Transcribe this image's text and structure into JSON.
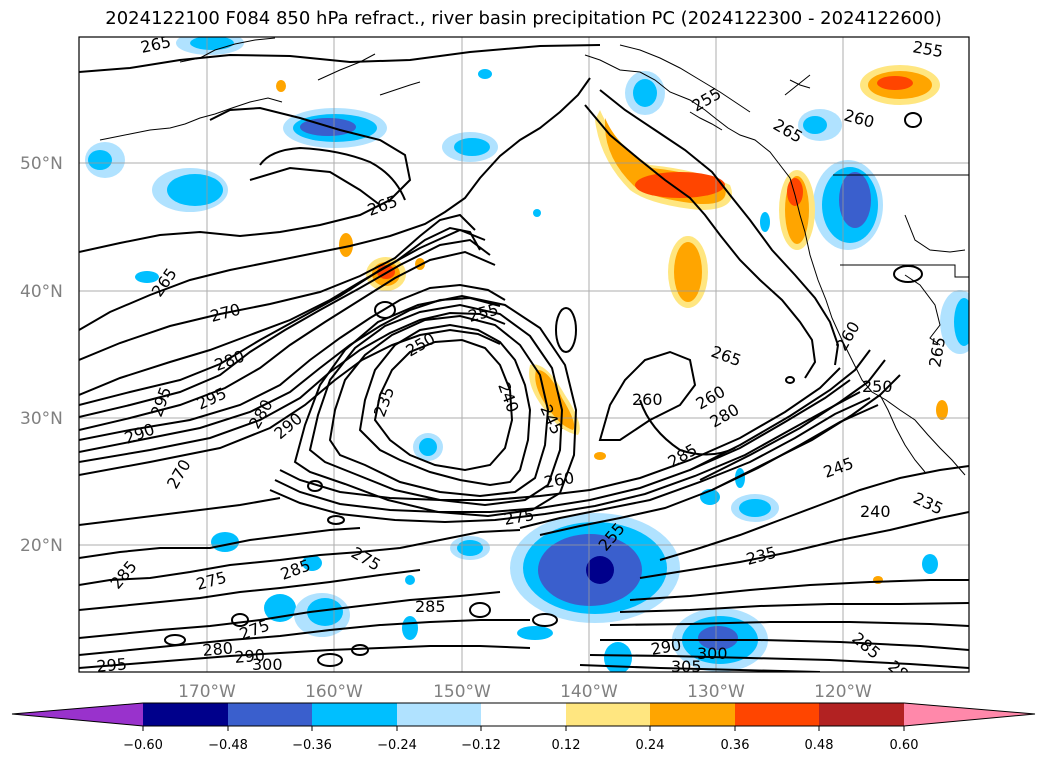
{
  "title": "2024122100 F084 850 hPa refract., river basin precipitation PC (2024122300 - 2024122600)",
  "map": {
    "lat_labels": [
      "50°N",
      "40°N",
      "30°N",
      "20°N"
    ],
    "lon_labels": [
      "170°W",
      "160°W",
      "150°W",
      "140°W",
      "130°W",
      "120°W"
    ],
    "grid": true
  },
  "contour_labels": [
    "265",
    "265",
    "265",
    "270",
    "280",
    "295",
    "290",
    "295",
    "270",
    "280",
    "290",
    "255",
    "250",
    "235",
    "240",
    "245",
    "260",
    "265",
    "260",
    "255",
    "265",
    "280",
    "285",
    "260",
    "275",
    "275",
    "285",
    "275",
    "285",
    "280",
    "290",
    "300",
    "295",
    "285",
    "275",
    "255",
    "235",
    "245",
    "240",
    "235",
    "290",
    "300",
    "305",
    "285",
    "28",
    "250",
    "260",
    "265",
    "255",
    "260"
  ],
  "colorbar": {
    "ticks": [
      "−0.60",
      "−0.48",
      "−0.36",
      "−0.24",
      "−0.12",
      "0.12",
      "0.24",
      "0.36",
      "0.48",
      "0.60"
    ],
    "colors": {
      "lt_neg060": "#9932cc",
      "neg060_neg048": "#00008b",
      "neg048_neg036": "#3a5fcd",
      "neg036_neg024": "#00bfff",
      "neg024_neg012": "#b0e2ff",
      "neg012_012": "#ffffff",
      "p012_024": "#ffe680",
      "p024_036": "#ffa500",
      "p036_048": "#ff4500",
      "p048_060": "#b22222",
      "gt_060": "#ff88aa"
    }
  }
}
